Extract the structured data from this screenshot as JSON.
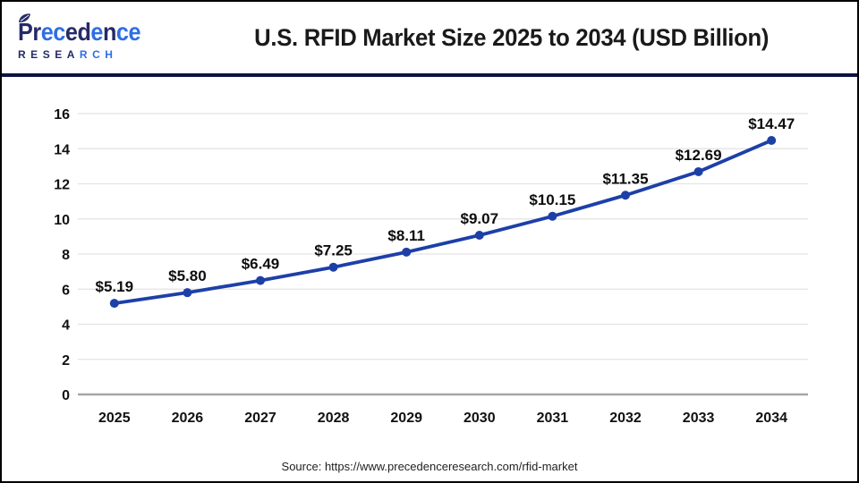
{
  "header": {
    "title": "U.S. RFID Market Size 2025 to 2034 (USD Billion)",
    "logo": {
      "word": "Precedence",
      "subtitle": "RESEARCH",
      "letters": [
        {
          "t": "P",
          "c": "navy"
        },
        {
          "t": "r",
          "c": "navy"
        },
        {
          "t": "e",
          "c": "blue"
        },
        {
          "t": "c",
          "c": "blue"
        },
        {
          "t": "e",
          "c": "navy"
        },
        {
          "t": "d",
          "c": "navy"
        },
        {
          "t": "e",
          "c": "blue"
        },
        {
          "t": "n",
          "c": "navy"
        },
        {
          "t": "c",
          "c": "blue"
        },
        {
          "t": "e",
          "c": "blue"
        }
      ],
      "sub_letters": [
        {
          "t": "R",
          "c": "navy"
        },
        {
          "t": "E",
          "c": "navy"
        },
        {
          "t": "S",
          "c": "navy"
        },
        {
          "t": "E",
          "c": "navy"
        },
        {
          "t": "A",
          "c": "navy"
        },
        {
          "t": "R",
          "c": "blue"
        },
        {
          "t": "C",
          "c": "blue"
        },
        {
          "t": "H",
          "c": "blue"
        }
      ]
    }
  },
  "chart_data": {
    "type": "line",
    "title": "U.S. RFID Market Size 2025 to 2034 (USD Billion)",
    "categories": [
      "2025",
      "2026",
      "2027",
      "2028",
      "2029",
      "2030",
      "2031",
      "2032",
      "2033",
      "2034"
    ],
    "values": [
      5.19,
      5.8,
      6.49,
      7.25,
      8.11,
      9.07,
      10.15,
      11.35,
      12.69,
      14.47
    ],
    "point_labels": [
      "$5.19",
      "$5.80",
      "$6.49",
      "$7.25",
      "$8.11",
      "$9.07",
      "$10.15",
      "$11.35",
      "$12.69",
      "$14.47"
    ],
    "xlabel": "",
    "ylabel": "",
    "ylim": [
      0,
      16
    ],
    "ytick_step": 2,
    "grid": true,
    "legend_position": "none",
    "line_color": "#1d3fa8",
    "marker": "circle"
  },
  "footer": {
    "source": "Source: https://www.precedenceresearch.com/rfid-market"
  },
  "palette": {
    "navy": "#252b66",
    "blue": "#2f6fe4",
    "grid": "#e3e3e3",
    "axis_baseline": "#a6a6a6",
    "axis_text": "#111111",
    "data_label": "#0d0d0d",
    "separator": "#0e1440",
    "border": "#000000"
  }
}
